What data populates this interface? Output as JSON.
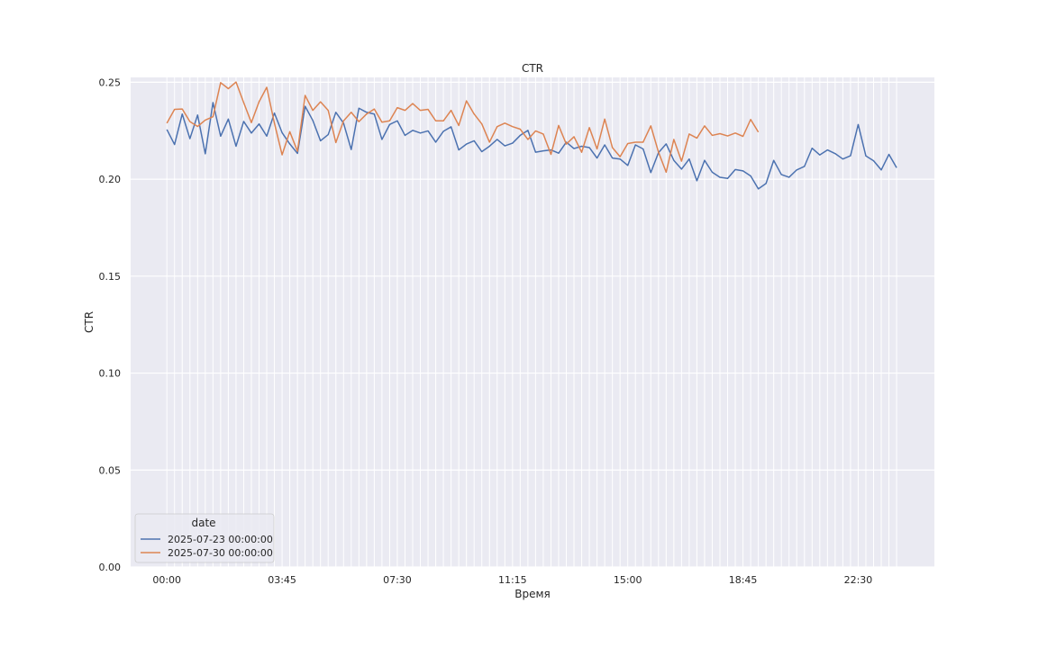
{
  "chart_data": {
    "type": "line",
    "title": "CTR",
    "xlabel": "Время",
    "ylabel": "CTR",
    "ylim": [
      0,
      0.2525
    ],
    "x_tick_labels": [
      "00:00",
      "03:45",
      "07:30",
      "11:15",
      "15:00",
      "18:45",
      "22:30"
    ],
    "y_ticks": [
      0,
      0.05,
      0.1,
      0.15,
      0.2,
      0.25
    ],
    "y_tick_labels": [
      "0.00",
      "0.05",
      "0.10",
      "0.15",
      "0.20",
      "0.25"
    ],
    "grid": true,
    "legend": {
      "title": "date",
      "position": "lower-left"
    },
    "interval_minutes": 15,
    "total_slots": 96,
    "series": [
      {
        "name": "2025-07-23 00:00:00",
        "color": "#4c72b0",
        "values": [
          0.2256,
          0.2179,
          0.2336,
          0.2209,
          0.2331,
          0.2131,
          0.2395,
          0.2222,
          0.231,
          0.217,
          0.2298,
          0.2238,
          0.2285,
          0.2222,
          0.2341,
          0.224,
          0.2182,
          0.2133,
          0.2376,
          0.2303,
          0.2198,
          0.223,
          0.2345,
          0.2289,
          0.2153,
          0.2366,
          0.2345,
          0.2336,
          0.2205,
          0.2282,
          0.2301,
          0.2226,
          0.2252,
          0.2238,
          0.2249,
          0.2191,
          0.2247,
          0.227,
          0.2151,
          0.2181,
          0.2198,
          0.2142,
          0.217,
          0.2205,
          0.2172,
          0.2186,
          0.2226,
          0.2252,
          0.2139,
          0.2146,
          0.2151,
          0.2134,
          0.2191,
          0.2158,
          0.217,
          0.2163,
          0.2109,
          0.2177,
          0.2109,
          0.2104,
          0.2071,
          0.2177,
          0.2156,
          0.2034,
          0.2137,
          0.2182,
          0.2097,
          0.2052,
          0.2104,
          0.1992,
          0.2097,
          0.2036,
          0.201,
          0.2004,
          0.205,
          0.2043,
          0.2017,
          0.195,
          0.1978,
          0.2097,
          0.2024,
          0.201,
          0.2048,
          0.2066,
          0.216,
          0.2125,
          0.2151,
          0.2132,
          0.2104,
          0.2121,
          0.2282,
          0.212,
          0.2095,
          0.2048,
          0.2128,
          0.2059
        ]
      },
      {
        "name": "2025-07-30 00:00:00",
        "color": "#dd8452",
        "values": [
          0.2289,
          0.236,
          0.2362,
          0.2297,
          0.2272,
          0.2305,
          0.2322,
          0.2498,
          0.2467,
          0.2501,
          0.2395,
          0.2292,
          0.2399,
          0.2474,
          0.2289,
          0.2126,
          0.2245,
          0.2144,
          0.2432,
          0.2355,
          0.2399,
          0.2355,
          0.2189,
          0.2301,
          0.2345,
          0.2297,
          0.2336,
          0.2362,
          0.2294,
          0.2301,
          0.2369,
          0.2355,
          0.239,
          0.2355,
          0.236,
          0.2301,
          0.2301,
          0.2355,
          0.2277,
          0.2404,
          0.2336,
          0.2285,
          0.2191,
          0.2271,
          0.2289,
          0.2271,
          0.2258,
          0.2205,
          0.2249,
          0.2233,
          0.2128,
          0.2277,
          0.2181,
          0.2219,
          0.2139,
          0.2266,
          0.2156,
          0.231,
          0.2163,
          0.2116,
          0.2184,
          0.2191,
          0.2191,
          0.2275,
          0.214,
          0.2036,
          0.2205,
          0.2093,
          0.2233,
          0.2212,
          0.2275,
          0.2226,
          0.2235,
          0.2223,
          0.2238,
          0.2221,
          0.2308,
          0.2243
        ]
      }
    ]
  }
}
